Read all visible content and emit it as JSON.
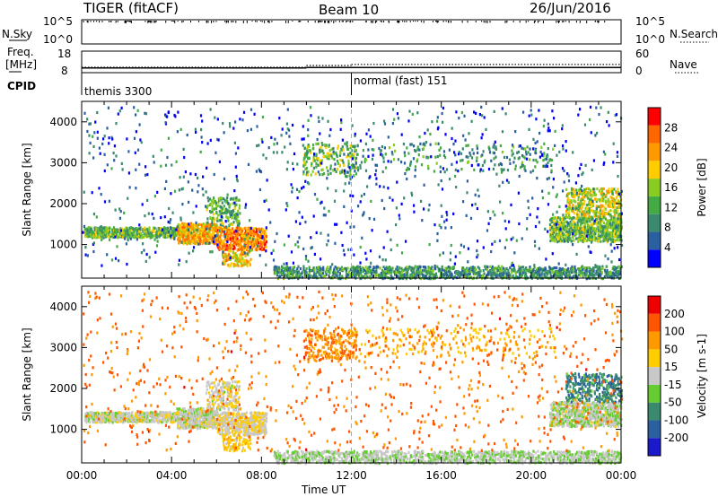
{
  "header": {
    "radar": "TIGER (fitACF)",
    "beam": "Beam 10",
    "date": "26/Jun/2016"
  },
  "top_panels": {
    "nsky_label": "N.Sky",
    "nsky_ticks": [
      "10^5",
      "10^0"
    ],
    "nsearch_label": "N.Search",
    "nsearch_ticks": [
      "10^5",
      "10^0"
    ],
    "freq_label_1": "Freq.",
    "freq_label_2": "[MHz]",
    "freq_ticks": [
      "18",
      "8"
    ],
    "nave_label": "Nave",
    "nave_ticks": [
      "60",
      "0"
    ],
    "cpid_label": "CPID",
    "cpid_segments": [
      "themis 3300",
      "normal (fast) 151"
    ]
  },
  "power_panel": {
    "ylabel": "Slant Range [km]",
    "yticks": [
      "4000",
      "3000",
      "2000",
      "1000"
    ],
    "colorbar_label": "Power [dB]",
    "colorbar_ticks": [
      "28",
      "24",
      "20",
      "16",
      "12",
      "8",
      "4"
    ],
    "colors": [
      "#0000ff",
      "#2a5fa0",
      "#3a8a70",
      "#44aa44",
      "#88cc22",
      "#ffcc00",
      "#ff9900",
      "#ff6600",
      "#ff0000"
    ]
  },
  "velocity_panel": {
    "ylabel": "Slant Range [km]",
    "yticks": [
      "4000",
      "3000",
      "2000",
      "1000"
    ],
    "colorbar_label": "Velocity [m s-1]",
    "colorbar_ticks": [
      "200",
      "100",
      "50",
      "15",
      "-15",
      "-50",
      "-100",
      "-200"
    ],
    "colors": [
      "#1a1acc",
      "#2a5fa0",
      "#3a8a70",
      "#66cc33",
      "#c8c8c8",
      "#ffcc00",
      "#ff9900",
      "#ff5500",
      "#ee0000"
    ]
  },
  "x_axis": {
    "ticks": [
      "00:00",
      "04:00",
      "08:00",
      "12:00",
      "16:00",
      "20:00",
      "00:00"
    ],
    "label": "Time UT"
  },
  "chart_data": {
    "type": "heatmap",
    "title": "TIGER (fitACF)",
    "subtitle": "Beam 10",
    "date": "26/Jun/2016",
    "x_range_hours": [
      0,
      24
    ],
    "y_range_km": [
      180,
      4500
    ],
    "xlabel": "Time UT",
    "ylabel": "Slant Range [km]",
    "power_range_db": [
      0,
      32
    ],
    "velocity_range": [
      -250,
      250
    ],
    "mode_change_hour": 12,
    "freq_mhz": [
      {
        "t0": 0,
        "t1": 10,
        "v": 10.2
      },
      {
        "t0": 10,
        "t1": 24,
        "v": 10.4
      }
    ],
    "nave": [
      {
        "t0": 0,
        "t1": 10,
        "v": 15
      },
      {
        "t0": 10,
        "t1": 12,
        "v": 20
      },
      {
        "t0": 12,
        "t1": 24,
        "v": 23
      }
    ],
    "scatter_regions": [
      {
        "t0": 0.1,
        "t1": 4.2,
        "r0": 1200,
        "r1": 1450,
        "power": 14,
        "velocity": 0,
        "density": 0.75
      },
      {
        "t0": 4.2,
        "t1": 6.0,
        "r0": 1050,
        "r1": 1550,
        "power": 22,
        "velocity": -5,
        "density": 0.7
      },
      {
        "t0": 6.0,
        "t1": 8.2,
        "r0": 900,
        "r1": 1450,
        "power": 24,
        "velocity": 20,
        "density": 0.6
      },
      {
        "t0": 5.5,
        "t1": 7.0,
        "r0": 1500,
        "r1": 2200,
        "power": 13,
        "velocity": 10,
        "density": 0.3
      },
      {
        "t0": 6.2,
        "t1": 7.5,
        "r0": 500,
        "r1": 900,
        "power": 20,
        "velocity": 60,
        "density": 0.35
      },
      {
        "t0": 9.8,
        "t1": 12.2,
        "r0": 2700,
        "r1": 3500,
        "power": 14,
        "velocity": 120,
        "density": 0.2
      },
      {
        "t0": 8.5,
        "t1": 24,
        "r0": 200,
        "r1": 500,
        "power": 10,
        "velocity": -20,
        "density": 0.45
      },
      {
        "t0": 20.8,
        "t1": 24,
        "r0": 1100,
        "r1": 1700,
        "power": 14,
        "velocity": -10,
        "density": 0.6
      },
      {
        "t0": 21.5,
        "t1": 24,
        "r0": 1700,
        "r1": 2400,
        "power": 18,
        "velocity": -120,
        "density": 0.35
      },
      {
        "t0": 12,
        "t1": 21,
        "r0": 2800,
        "r1": 3500,
        "power": 10,
        "velocity": 80,
        "density": 0.06
      },
      {
        "t0": 0,
        "t1": 24,
        "r0": 500,
        "r1": 4400,
        "power": 6,
        "velocity": 150,
        "density": 0.02
      }
    ]
  }
}
